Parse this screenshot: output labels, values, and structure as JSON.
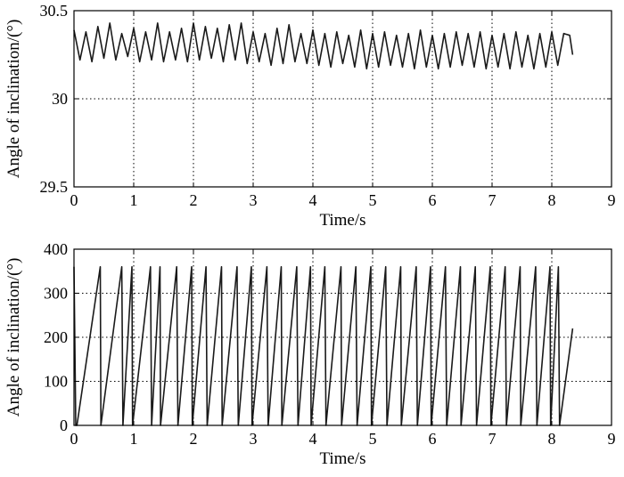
{
  "chart_data": [
    {
      "type": "line",
      "title": "",
      "xlabel": "Time/s",
      "ylabel": "Angle of inclination/(°)",
      "xlim": [
        0,
        9
      ],
      "ylim": [
        29.5,
        30.5
      ],
      "xticks": [
        "0",
        "1",
        "2",
        "3",
        "4",
        "5",
        "6",
        "7",
        "8",
        "9"
      ],
      "yticks": [
        "29.5",
        "30",
        "30.5"
      ],
      "grid": true,
      "series": [
        {
          "x": [
            0,
            0.1,
            0.2,
            0.3,
            0.4,
            0.5,
            0.6,
            0.7,
            0.8,
            0.9,
            1.0,
            1.1,
            1.2,
            1.3,
            1.4,
            1.5,
            1.6,
            1.7,
            1.8,
            1.9,
            2.0,
            2.1,
            2.2,
            2.3,
            2.4,
            2.5,
            2.6,
            2.7,
            2.8,
            2.9,
            3.0,
            3.1,
            3.2,
            3.3,
            3.4,
            3.5,
            3.6,
            3.7,
            3.8,
            3.9,
            4.0,
            4.1,
            4.2,
            4.3,
            4.4,
            4.5,
            4.6,
            4.7,
            4.8,
            4.9,
            5.0,
            5.1,
            5.2,
            5.3,
            5.4,
            5.5,
            5.6,
            5.7,
            5.8,
            5.9,
            6.0,
            6.1,
            6.2,
            6.3,
            6.4,
            6.5,
            6.6,
            6.7,
            6.8,
            6.9,
            7.0,
            7.1,
            7.2,
            7.3,
            7.4,
            7.5,
            7.6,
            7.7,
            7.8,
            7.9,
            8.0,
            8.1,
            8.2,
            8.3,
            8.35
          ],
          "values": [
            30.39,
            30.22,
            30.38,
            30.21,
            30.41,
            30.23,
            30.43,
            30.22,
            30.37,
            30.24,
            30.4,
            30.21,
            30.38,
            30.22,
            30.43,
            30.21,
            30.38,
            30.22,
            30.4,
            30.21,
            30.43,
            30.22,
            30.41,
            30.23,
            30.4,
            30.21,
            30.42,
            30.22,
            30.43,
            30.2,
            30.38,
            30.21,
            30.37,
            30.19,
            30.4,
            30.2,
            30.42,
            30.21,
            30.37,
            30.2,
            30.39,
            30.19,
            30.37,
            30.18,
            30.38,
            30.2,
            30.36,
            30.18,
            30.39,
            30.17,
            30.37,
            30.18,
            30.38,
            30.19,
            30.36,
            30.18,
            30.37,
            30.17,
            30.39,
            30.18,
            30.36,
            30.17,
            30.37,
            30.18,
            30.38,
            30.19,
            30.37,
            30.18,
            30.38,
            30.17,
            30.36,
            30.18,
            30.37,
            30.17,
            30.38,
            30.18,
            30.36,
            30.17,
            30.37,
            30.18,
            30.38,
            30.19,
            30.37,
            30.36,
            30.25
          ]
        }
      ]
    },
    {
      "type": "line",
      "title": "",
      "xlabel": "Time/s",
      "ylabel": "Angle of inclination/(°)",
      "xlim": [
        0,
        9
      ],
      "ylim": [
        0,
        400
      ],
      "xticks": [
        "0",
        "1",
        "2",
        "3",
        "4",
        "5",
        "6",
        "7",
        "8",
        "9"
      ],
      "yticks": [
        "0",
        "100",
        "200",
        "300",
        "400"
      ],
      "grid": true,
      "series": [
        {
          "x": [
            0,
            0.03,
            0.05,
            0.44,
            0.45,
            0.8,
            0.82,
            0.97,
            0.98,
            1.28,
            1.3,
            1.44,
            1.45,
            1.72,
            1.74,
            1.97,
            1.98,
            2.21,
            2.23,
            2.47,
            2.48,
            2.73,
            2.75,
            2.97,
            2.98,
            3.23,
            3.25,
            3.47,
            3.48,
            3.73,
            3.75,
            3.96,
            3.97,
            4.2,
            4.22,
            4.47,
            4.48,
            4.72,
            4.74,
            4.97,
            4.98,
            5.22,
            5.24,
            5.47,
            5.48,
            5.73,
            5.75,
            5.97,
            5.98,
            6.22,
            6.24,
            6.47,
            6.48,
            6.72,
            6.74,
            6.97,
            6.98,
            7.22,
            7.24,
            7.47,
            7.48,
            7.73,
            7.75,
            7.97,
            7.98,
            8.11,
            8.13,
            8.35
          ],
          "values": [
            360,
            0,
            0,
            360,
            0,
            360,
            0,
            360,
            0,
            360,
            0,
            360,
            0,
            360,
            0,
            360,
            0,
            360,
            0,
            360,
            0,
            360,
            0,
            360,
            0,
            360,
            0,
            360,
            0,
            360,
            0,
            360,
            0,
            360,
            0,
            360,
            0,
            360,
            0,
            360,
            0,
            360,
            0,
            360,
            0,
            360,
            0,
            360,
            0,
            360,
            0,
            360,
            0,
            360,
            0,
            360,
            0,
            360,
            0,
            360,
            0,
            360,
            0,
            360,
            0,
            360,
            0,
            220
          ]
        }
      ]
    }
  ]
}
